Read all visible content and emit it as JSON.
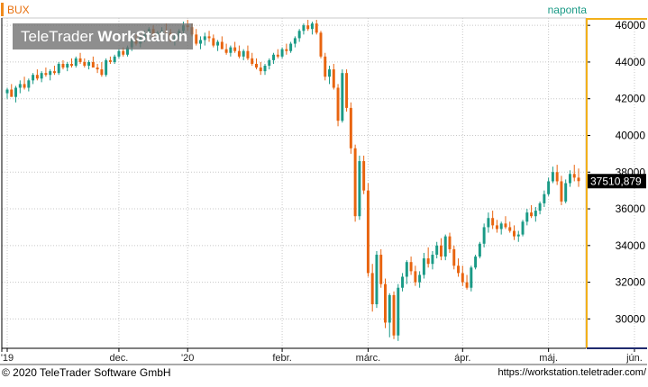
{
  "header": {
    "title": "BUX",
    "period": "naponta"
  },
  "watermark": {
    "brand": "TeleTrader",
    "product": "WorkStation"
  },
  "footer": {
    "copyright": "© 2020 TeleTrader Software GmbH",
    "url": "https://workstation.teletrader.com/"
  },
  "last_price_label": "37510,879",
  "colors": {
    "up": "#1a9a86",
    "down": "#e8640f",
    "grid": "#c8c8c8",
    "axis_line": "#f2b01a",
    "axis_dark": "#1f2a6e",
    "price_tag": "#000000"
  },
  "chart_data": {
    "type": "candlestick",
    "title": "BUX",
    "ylim": [
      28400,
      46400
    ],
    "yticks": [
      30000,
      32000,
      34000,
      36000,
      38000,
      40000,
      42000,
      44000,
      46000
    ],
    "ytick_labels": [
      "30000",
      "32000",
      "34000",
      "36000",
      "38000",
      "40000",
      "42000",
      "44000",
      "46000"
    ],
    "xticks": [
      {
        "label": "'19",
        "index": 0
      },
      {
        "label": "dec.",
        "index": 26
      },
      {
        "label": "'20",
        "index": 42
      },
      {
        "label": "febr.",
        "index": 64
      },
      {
        "label": "márc.",
        "index": 84
      },
      {
        "label": "ápr.",
        "index": 106
      },
      {
        "label": "máj.",
        "index": 126
      },
      {
        "label": "jún.",
        "index": 146
      }
    ],
    "grid": true,
    "ohlc": [
      [
        42300,
        42600,
        42000,
        42500
      ],
      [
        42500,
        42800,
        42200,
        42100
      ],
      [
        42100,
        42700,
        41800,
        42600
      ],
      [
        42600,
        43000,
        42300,
        42800
      ],
      [
        42800,
        43200,
        42500,
        42600
      ],
      [
        42600,
        43100,
        42400,
        43000
      ],
      [
        43000,
        43400,
        42800,
        43300
      ],
      [
        43300,
        43600,
        43000,
        43100
      ],
      [
        43100,
        43500,
        42900,
        43400
      ],
      [
        43400,
        43700,
        43200,
        43300
      ],
      [
        43300,
        43600,
        43000,
        43500
      ],
      [
        43500,
        43800,
        43300,
        43400
      ],
      [
        43400,
        44000,
        43300,
        43900
      ],
      [
        43900,
        44100,
        43600,
        43700
      ],
      [
        43700,
        44000,
        43500,
        43900
      ],
      [
        43900,
        44200,
        43700,
        43800
      ],
      [
        43800,
        44300,
        43700,
        44200
      ],
      [
        44200,
        44500,
        43900,
        44000
      ],
      [
        44000,
        44200,
        43700,
        43800
      ],
      [
        43800,
        44100,
        43600,
        44000
      ],
      [
        44000,
        44300,
        43800,
        43700
      ],
      [
        43700,
        43900,
        43400,
        43600
      ],
      [
        43600,
        44000,
        43200,
        43300
      ],
      [
        43300,
        44200,
        43200,
        44100
      ],
      [
        44100,
        44300,
        43900,
        44000
      ],
      [
        44000,
        44400,
        43900,
        44300
      ],
      [
        44300,
        44700,
        44200,
        44600
      ],
      [
        44600,
        44800,
        44300,
        44400
      ],
      [
        44400,
        44900,
        44300,
        44800
      ],
      [
        44800,
        45300,
        44600,
        45200
      ],
      [
        45200,
        45500,
        44900,
        45000
      ],
      [
        45000,
        45400,
        44800,
        45300
      ],
      [
        45300,
        45700,
        45100,
        45500
      ],
      [
        45500,
        45900,
        45300,
        45800
      ],
      [
        45800,
        46000,
        45300,
        45400
      ],
      [
        45400,
        45700,
        45100,
        45600
      ],
      [
        45600,
        45900,
        45300,
        45700
      ],
      [
        45700,
        46100,
        45500,
        45600
      ],
      [
        45600,
        45800,
        45100,
        45200
      ],
      [
        45200,
        45500,
        44900,
        45400
      ],
      [
        45400,
        45800,
        45200,
        45700
      ],
      [
        45700,
        46200,
        45500,
        46000
      ],
      [
        46000,
        46300,
        45700,
        45900
      ],
      [
        45900,
        46100,
        45400,
        45500
      ],
      [
        45500,
        45800,
        44900,
        45000
      ],
      [
        45000,
        45400,
        44700,
        45200
      ],
      [
        45200,
        45600,
        44900,
        45400
      ],
      [
        45400,
        45700,
        45100,
        45300
      ],
      [
        45300,
        45500,
        44800,
        44900
      ],
      [
        44900,
        45200,
        44600,
        45100
      ],
      [
        45100,
        45400,
        44800,
        44700
      ],
      [
        44700,
        45000,
        44400,
        44500
      ],
      [
        44500,
        44900,
        44300,
        44800
      ],
      [
        44800,
        45100,
        44500,
        44600
      ],
      [
        44600,
        44900,
        44200,
        44300
      ],
      [
        44300,
        44700,
        44100,
        44600
      ],
      [
        44600,
        44900,
        44100,
        44200
      ],
      [
        44200,
        44500,
        43800,
        43900
      ],
      [
        43900,
        44200,
        43600,
        43700
      ],
      [
        43700,
        44000,
        43300,
        43500
      ],
      [
        43500,
        43900,
        43300,
        43800
      ],
      [
        43800,
        44200,
        43600,
        44100
      ],
      [
        44100,
        44500,
        43900,
        44400
      ],
      [
        44400,
        44700,
        44200,
        44300
      ],
      [
        44300,
        44800,
        44200,
        44700
      ],
      [
        44700,
        45000,
        44400,
        44600
      ],
      [
        44600,
        45100,
        44500,
        45000
      ],
      [
        45000,
        45400,
        44800,
        45300
      ],
      [
        45300,
        45800,
        45100,
        45700
      ],
      [
        45700,
        46100,
        45500,
        46000
      ],
      [
        46000,
        46300,
        45700,
        45800
      ],
      [
        45800,
        46200,
        45500,
        46100
      ],
      [
        46100,
        46300,
        45500,
        45600
      ],
      [
        45600,
        45700,
        44200,
        44300
      ],
      [
        44300,
        44500,
        43000,
        43200
      ],
      [
        43200,
        43800,
        42800,
        43600
      ],
      [
        43600,
        43900,
        42500,
        42600
      ],
      [
        42600,
        42800,
        40500,
        40800
      ],
      [
        40800,
        43600,
        40700,
        43400
      ],
      [
        43400,
        43600,
        41300,
        41500
      ],
      [
        41500,
        41800,
        39000,
        39300
      ],
      [
        39300,
        39500,
        35300,
        35600
      ],
      [
        35600,
        38900,
        35400,
        38600
      ],
      [
        38600,
        38900,
        36800,
        37000
      ],
      [
        37000,
        37400,
        32300,
        32500
      ],
      [
        32500,
        33000,
        30400,
        30800
      ],
      [
        30800,
        33700,
        30600,
        33500
      ],
      [
        33500,
        33800,
        31700,
        31900
      ],
      [
        31900,
        32200,
        29500,
        29800
      ],
      [
        29800,
        31400,
        29000,
        31300
      ],
      [
        31300,
        31500,
        28900,
        29100
      ],
      [
        29100,
        31900,
        28800,
        31700
      ],
      [
        31700,
        32500,
        31500,
        32300
      ],
      [
        32300,
        33200,
        31900,
        33100
      ],
      [
        33100,
        33400,
        32400,
        32600
      ],
      [
        32600,
        32900,
        31800,
        32000
      ],
      [
        32000,
        32600,
        31700,
        32400
      ],
      [
        32400,
        33600,
        32200,
        33300
      ],
      [
        33300,
        33900,
        32800,
        33000
      ],
      [
        33000,
        33700,
        32700,
        33500
      ],
      [
        33500,
        34200,
        33300,
        34000
      ],
      [
        34000,
        34400,
        33200,
        33400
      ],
      [
        33400,
        34600,
        33200,
        34500
      ],
      [
        34500,
        34700,
        33600,
        33800
      ],
      [
        33800,
        34000,
        32700,
        32900
      ],
      [
        32900,
        33300,
        32300,
        32500
      ],
      [
        32500,
        32900,
        31800,
        32000
      ],
      [
        32000,
        32400,
        31600,
        31700
      ],
      [
        31700,
        32900,
        31500,
        32800
      ],
      [
        32800,
        33500,
        32700,
        33400
      ],
      [
        33400,
        34200,
        33300,
        34100
      ],
      [
        34100,
        35200,
        33900,
        35000
      ],
      [
        35000,
        35800,
        34700,
        35500
      ],
      [
        35500,
        35900,
        34900,
        35100
      ],
      [
        35100,
        35400,
        34700,
        34900
      ],
      [
        34900,
        35300,
        34600,
        35200
      ],
      [
        35200,
        35600,
        34900,
        35000
      ],
      [
        35000,
        35300,
        34700,
        34800
      ],
      [
        34800,
        35100,
        34300,
        34500
      ],
      [
        34500,
        34800,
        34200,
        34600
      ],
      [
        34600,
        35400,
        34500,
        35300
      ],
      [
        35300,
        36000,
        35100,
        35800
      ],
      [
        35800,
        36200,
        35500,
        35600
      ],
      [
        35600,
        36100,
        35300,
        35900
      ],
      [
        35900,
        36400,
        35700,
        36300
      ],
      [
        36300,
        37000,
        36100,
        36800
      ],
      [
        36800,
        37700,
        36700,
        37500
      ],
      [
        37500,
        38300,
        37400,
        38000
      ],
      [
        38000,
        38400,
        37300,
        37500
      ],
      [
        37500,
        37800,
        36200,
        36400
      ],
      [
        36400,
        37600,
        36300,
        37400
      ],
      [
        37400,
        38100,
        37200,
        37900
      ],
      [
        37900,
        38400,
        37500,
        37700
      ],
      [
        37700,
        38200,
        37200,
        37510
      ]
    ]
  }
}
